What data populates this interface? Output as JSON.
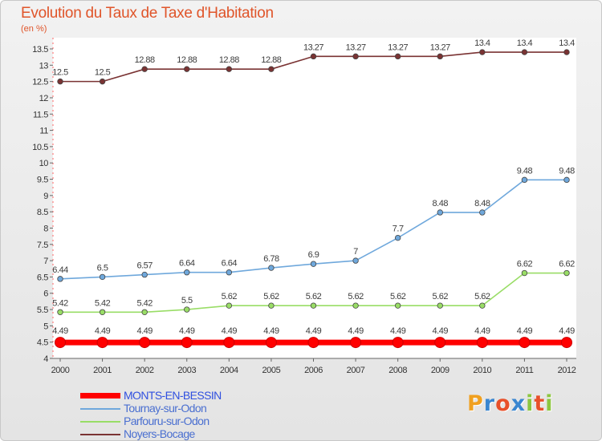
{
  "title": "Evolution du Taux de Taxe d'Habitation",
  "subtitle": "(en %)",
  "logo": {
    "letters": [
      "P",
      "r",
      "o",
      "x",
      "i",
      "t",
      "i"
    ],
    "colors": [
      "#f0a020",
      "#3a86d0",
      "#e8502a",
      "#3a86d0",
      "#8cc63f",
      "#e8502a",
      "#8cc63f"
    ]
  },
  "chart_data": {
    "type": "line",
    "x": [
      "2000",
      "2001",
      "2002",
      "2003",
      "2004",
      "2005",
      "2006",
      "2007",
      "2008",
      "2009",
      "2010",
      "2011",
      "2012"
    ],
    "ylim": [
      4,
      13.5
    ],
    "yticks": [
      "4",
      "4.5",
      "5",
      "5.5",
      "6",
      "6.5",
      "7",
      "7.5",
      "8",
      "8.5",
      "9",
      "9.5",
      "10",
      "10.5",
      "11",
      "11.5",
      "12",
      "12.5",
      "13",
      "13.5"
    ],
    "grid": false,
    "legend_position": "bottom-left",
    "series": [
      {
        "name": "MONTS-EN-BESSIN",
        "color": "#ff0000",
        "text_color": "#3050e0",
        "values": [
          4.49,
          4.49,
          4.49,
          4.49,
          4.49,
          4.49,
          4.49,
          4.49,
          4.49,
          4.49,
          4.49,
          4.49,
          4.49
        ],
        "labels": [
          "4.49",
          "4.49",
          "4.49",
          "4.49",
          "4.49",
          "4.49",
          "4.49",
          "4.49",
          "4.49",
          "4.49",
          "4.49",
          "4.49",
          "4.49"
        ]
      },
      {
        "name": "Tournay-sur-Odon",
        "color": "#6fa8dc",
        "text_color": "#3c3c3c",
        "values": [
          6.44,
          6.5,
          6.57,
          6.64,
          6.64,
          6.78,
          6.9,
          7,
          7.7,
          8.48,
          8.48,
          9.48,
          9.48
        ],
        "labels": [
          "6.44",
          "6.5",
          "6.57",
          "6.64",
          "6.64",
          "6.78",
          "6.9",
          "7",
          "7.7",
          "8.48",
          "8.48",
          "9.48",
          "9.48"
        ]
      },
      {
        "name": "Parfouru-sur-Odon",
        "color": "#99dd66",
        "text_color": "#3c3c3c",
        "values": [
          5.42,
          5.42,
          5.42,
          5.5,
          5.62,
          5.62,
          5.62,
          5.62,
          5.62,
          5.62,
          5.62,
          6.62,
          6.62
        ],
        "labels": [
          "5.42",
          "5.42",
          "5.42",
          "5.5",
          "5.62",
          "5.62",
          "5.62",
          "5.62",
          "5.62",
          "5.62",
          "5.62",
          "6.62",
          "6.62"
        ]
      },
      {
        "name": "Noyers-Bocage",
        "color": "#7a3333",
        "text_color": "#3c3c3c",
        "values": [
          12.5,
          12.5,
          12.88,
          12.88,
          12.88,
          12.88,
          13.27,
          13.27,
          13.27,
          13.27,
          13.4,
          13.4,
          13.4
        ],
        "labels": [
          "12.5",
          "12.5",
          "12.88",
          "12.88",
          "12.88",
          "12.88",
          "13.27",
          "13.27",
          "13.27",
          "13.27",
          "13.4",
          "13.4",
          "13.4"
        ]
      }
    ]
  }
}
